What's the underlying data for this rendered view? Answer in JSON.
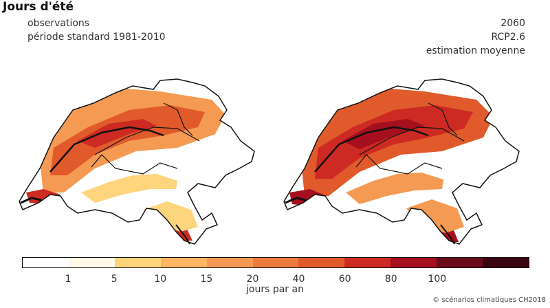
{
  "title": "Jours d'été",
  "left_panel": {
    "line1": "observations",
    "line2": "période standard 1981-2010"
  },
  "right_panel": {
    "line1": "2060",
    "line2": "RCP2.6",
    "line3": "estimation moyenne"
  },
  "legend": {
    "colors": [
      "#ffffff",
      "#fffbe8",
      "#fed47c",
      "#fbb563",
      "#f59a52",
      "#ed7b3e",
      "#e05a2c",
      "#cc2a22",
      "#a50f1e",
      "#6b0a18",
      "#3a0510"
    ],
    "ticks": [
      "1",
      "5",
      "10",
      "15",
      "20",
      "40",
      "60",
      "80",
      "100"
    ],
    "unit": "jours par an"
  },
  "copyright": "© scénarios climatiques CH2018"
}
